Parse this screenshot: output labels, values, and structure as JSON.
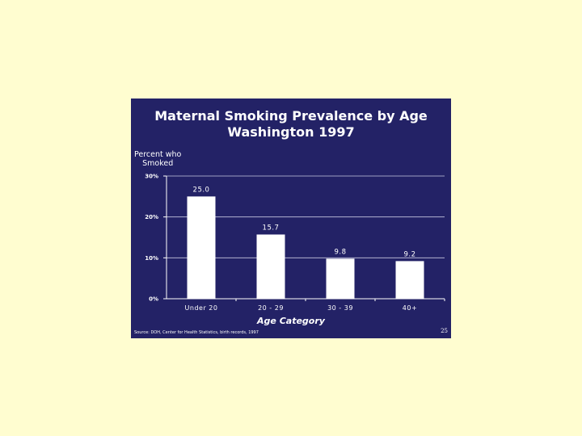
{
  "slide": {
    "background_color": "#232266",
    "page_background_color": "#fffdd0",
    "slide_number": "25",
    "source": "Source: DOH, Center for Health Statistics, birth records, 1997"
  },
  "chart_data": {
    "type": "bar",
    "title_lines": [
      "Maternal Smoking Prevalence by Age",
      "Washington 1997"
    ],
    "ylabel_lines": [
      "Percent who",
      "Smoked"
    ],
    "xlabel": "Age Category",
    "categories": [
      "Under 20",
      "20 - 29",
      "30 - 39",
      "40+"
    ],
    "values": [
      25.0,
      15.7,
      9.8,
      9.2
    ],
    "data_labels": [
      "25.0",
      "15.7",
      "9.8",
      "9.2"
    ],
    "ylim": [
      0,
      30
    ],
    "yticks": [
      0,
      10,
      20,
      30
    ],
    "ytick_labels": [
      "0%",
      "10%",
      "20%",
      "30%"
    ],
    "grid": true,
    "legend": "none",
    "bar_color": "#ffffff",
    "axis_color": "#ffffff"
  }
}
